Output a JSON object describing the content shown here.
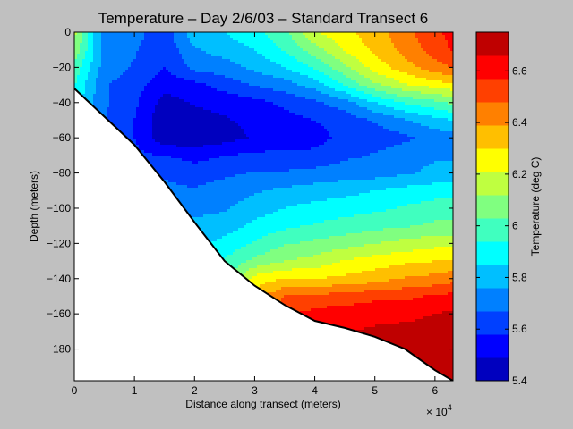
{
  "chart_data": {
    "type": "heatmap",
    "title": "Temperature – Day 2/6/03 – Standard Transect 6",
    "xlabel": "Distance along transect (meters)",
    "ylabel": "Depth (meters)",
    "x_multiplier": "× 10",
    "x_multiplier_exp": "4",
    "xlim": [
      0,
      63000
    ],
    "ylim": [
      -198,
      0
    ],
    "x_ticks": [
      0,
      10000,
      20000,
      30000,
      40000,
      50000,
      60000
    ],
    "x_tick_labels": [
      "0",
      "1",
      "2",
      "3",
      "4",
      "5",
      "6"
    ],
    "y_ticks": [
      0,
      -20,
      -40,
      -60,
      -80,
      -100,
      -120,
      -140,
      -160,
      -180
    ],
    "y_tick_labels": [
      "0",
      "−20",
      "−40",
      "−60",
      "−80",
      "−100",
      "−120",
      "−140",
      "−160",
      "−180"
    ],
    "colorbar": {
      "label": "Temperature (deg C)",
      "range": [
        5.4,
        6.75
      ],
      "ticks": [
        5.4,
        5.6,
        5.8,
        6.0,
        6.2,
        6.4,
        6.6
      ],
      "tick_labels": [
        "5.4",
        "5.6",
        "5.8",
        "6",
        "6.2",
        "6.4",
        "6.6"
      ],
      "colors": [
        "#0000bf",
        "#0000ff",
        "#0040ff",
        "#0080ff",
        "#00bfff",
        "#00ffff",
        "#40ffbf",
        "#80ff80",
        "#bfff40",
        "#ffff00",
        "#ffbf00",
        "#ff8000",
        "#ff4000",
        "#ff0000",
        "#bf0000"
      ]
    },
    "bottom_profile": {
      "x": [
        0,
        5000,
        10000,
        15000,
        20000,
        25000,
        30000,
        35000,
        40000,
        45000,
        50000,
        55000,
        60000,
        63000
      ],
      "depth": [
        -32,
        -48,
        -64,
        -85,
        -108,
        -130,
        -144,
        -155,
        -164,
        -168,
        -173,
        -180,
        -192,
        -198
      ]
    },
    "temperature_grid": {
      "x": [
        0,
        5000,
        10000,
        15000,
        20000,
        25000,
        30000,
        35000,
        40000,
        45000,
        50000,
        55000,
        60000,
        63000
      ],
      "depth": [
        0,
        -10,
        -20,
        -30,
        -40,
        -50,
        -60,
        -70,
        -80,
        -90,
        -100,
        -110,
        -120,
        -130,
        -140,
        -150,
        -160,
        -170,
        -180,
        -190,
        -198
      ],
      "values": [
        [
          6.15,
          5.7,
          5.7,
          5.62,
          5.82,
          5.85,
          5.92,
          6.0,
          6.2,
          6.28,
          6.35,
          6.45,
          6.55,
          6.6
        ],
        [
          6.1,
          5.72,
          5.68,
          5.6,
          5.75,
          5.8,
          5.85,
          5.95,
          6.08,
          6.22,
          6.32,
          6.42,
          6.52,
          6.58
        ],
        [
          6.0,
          5.72,
          5.66,
          5.58,
          5.7,
          5.72,
          5.78,
          5.85,
          5.95,
          6.1,
          6.25,
          6.35,
          6.45,
          6.48
        ],
        [
          5.95,
          5.68,
          5.62,
          5.52,
          5.55,
          5.62,
          5.68,
          5.72,
          5.8,
          5.95,
          6.1,
          6.2,
          6.25,
          6.28
        ],
        [
          5.9,
          5.68,
          5.6,
          5.45,
          5.5,
          5.52,
          5.55,
          5.6,
          5.65,
          5.72,
          5.85,
          5.95,
          6.0,
          6.05
        ],
        [
          5.9,
          5.68,
          5.58,
          5.42,
          5.45,
          5.48,
          5.52,
          5.55,
          5.58,
          5.62,
          5.68,
          5.75,
          5.82,
          5.85
        ],
        [
          5.9,
          5.65,
          5.58,
          5.42,
          5.42,
          5.45,
          5.5,
          5.53,
          5.55,
          5.6,
          5.62,
          5.65,
          5.7,
          5.72
        ],
        [
          5.9,
          5.65,
          5.6,
          5.58,
          5.55,
          5.58,
          5.6,
          5.6,
          5.6,
          5.65,
          5.68,
          5.72,
          5.75,
          5.75
        ],
        [
          5.9,
          5.65,
          5.62,
          5.65,
          5.62,
          5.65,
          5.68,
          5.68,
          5.7,
          5.72,
          5.72,
          5.75,
          5.78,
          5.78
        ],
        [
          5.9,
          5.65,
          5.65,
          5.7,
          5.68,
          5.72,
          5.75,
          5.78,
          5.8,
          5.82,
          5.85,
          5.88,
          5.9,
          5.9
        ],
        [
          5.9,
          5.7,
          5.7,
          5.75,
          5.72,
          5.75,
          5.8,
          5.85,
          5.88,
          5.9,
          5.92,
          5.95,
          5.98,
          5.98
        ],
        [
          5.9,
          5.72,
          5.72,
          5.75,
          5.8,
          5.8,
          5.88,
          5.92,
          5.95,
          5.98,
          6.0,
          6.02,
          6.05,
          6.05
        ],
        [
          5.9,
          5.75,
          5.75,
          5.78,
          5.82,
          5.88,
          5.95,
          6.02,
          6.05,
          6.08,
          6.12,
          6.15,
          6.18,
          6.18
        ],
        [
          5.9,
          5.75,
          5.75,
          5.8,
          5.85,
          5.95,
          6.05,
          6.12,
          6.15,
          6.22,
          6.25,
          6.28,
          6.3,
          6.3
        ],
        [
          5.9,
          5.75,
          5.75,
          5.8,
          5.85,
          6.0,
          6.25,
          6.3,
          6.3,
          6.32,
          6.35,
          6.4,
          6.42,
          6.45
        ],
        [
          5.9,
          5.75,
          5.75,
          5.8,
          5.85,
          6.05,
          6.35,
          6.48,
          6.5,
          6.52,
          6.55,
          6.55,
          6.58,
          6.6
        ],
        [
          5.9,
          5.75,
          5.75,
          5.8,
          5.85,
          6.1,
          6.4,
          6.55,
          6.6,
          6.62,
          6.62,
          6.62,
          6.66,
          6.68
        ],
        [
          5.9,
          5.75,
          5.75,
          5.8,
          5.85,
          6.1,
          6.4,
          6.6,
          6.62,
          6.65,
          6.68,
          6.7,
          6.72,
          6.72
        ],
        [
          5.9,
          5.75,
          5.75,
          5.8,
          5.85,
          6.1,
          6.4,
          6.6,
          6.65,
          6.68,
          6.7,
          6.74,
          6.75,
          6.75
        ],
        [
          5.9,
          5.75,
          5.75,
          5.8,
          5.85,
          6.1,
          6.4,
          6.6,
          6.65,
          6.7,
          6.72,
          6.75,
          6.75,
          6.75
        ],
        [
          5.9,
          5.75,
          5.75,
          5.8,
          5.85,
          6.1,
          6.4,
          6.6,
          6.65,
          6.7,
          6.72,
          6.75,
          6.75,
          6.75
        ]
      ]
    }
  }
}
